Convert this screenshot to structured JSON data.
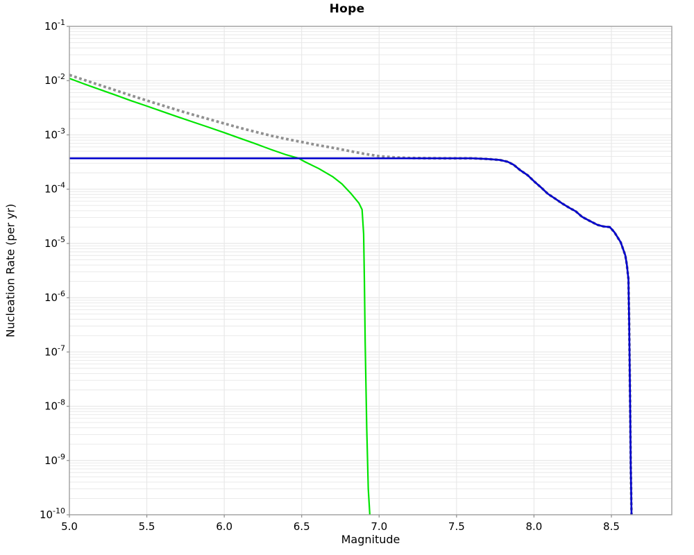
{
  "figure": {
    "title": "Hope"
  },
  "chart_data": {
    "type": "line",
    "title": "Hope",
    "xlabel": "Magnitude",
    "ylabel": "Nucleation Rate (per yr)",
    "x_range": [
      5.0,
      8.89
    ],
    "y_exponent_range": [
      -1,
      -10
    ],
    "x_tick_values": [
      5.0,
      5.5,
      6.0,
      6.5,
      7.0,
      7.5,
      8.0,
      8.5
    ],
    "x_tick_labels": [
      "5.0",
      "5.5",
      "6.0",
      "6.5",
      "7.0",
      "7.5",
      "8.0",
      "8.5"
    ],
    "y_tick_exponents": [
      -1,
      -2,
      -3,
      -4,
      -5,
      -6,
      -7,
      -8,
      -9,
      -10
    ],
    "grid": {
      "show": true,
      "color": "#e7e7e7",
      "vertical_at_major_x": true,
      "log_minor_horizontal": true
    },
    "legend": "none",
    "axis_color": "#a0a0a0",
    "tick_color": "#8c8c8c",
    "background_color": "#ffffff",
    "series": [
      {
        "name": "background-rate-green",
        "color": "#00e400",
        "line_style": "solid",
        "line_width": 2.2,
        "points": [
          [
            5.0,
            0.011
          ],
          [
            5.1,
            0.0086
          ],
          [
            5.2,
            0.0068
          ],
          [
            5.3,
            0.0054
          ],
          [
            5.4,
            0.00425
          ],
          [
            5.5,
            0.0034
          ],
          [
            5.6,
            0.0027
          ],
          [
            5.7,
            0.00215
          ],
          [
            5.8,
            0.00172
          ],
          [
            5.9,
            0.00138
          ],
          [
            6.0,
            0.0011
          ],
          [
            6.1,
            0.00087
          ],
          [
            6.2,
            0.00069
          ],
          [
            6.3,
            0.00054
          ],
          [
            6.4,
            0.00043
          ],
          [
            6.48,
            0.00037
          ],
          [
            6.52,
            0.00032
          ],
          [
            6.61,
            0.00024
          ],
          [
            6.7,
            0.00017
          ],
          [
            6.76,
            0.000125
          ],
          [
            6.82,
            8.2e-05
          ],
          [
            6.87,
            5.5e-05
          ],
          [
            6.89,
            4.2e-05
          ],
          [
            6.9,
            1.5e-05
          ],
          [
            6.905,
            2e-06
          ],
          [
            6.91,
            1.5e-07
          ],
          [
            6.92,
            4e-09
          ],
          [
            6.93,
            3e-10
          ],
          [
            6.94,
            1e-10
          ]
        ]
      },
      {
        "name": "total-rate-dotted-gray",
        "color": "#909090",
        "line_style": "dotted",
        "line_width": 3.8,
        "points": [
          [
            5.0,
            0.0127
          ],
          [
            5.1,
            0.0102
          ],
          [
            5.2,
            0.0082
          ],
          [
            5.3,
            0.0066
          ],
          [
            5.4,
            0.0053
          ],
          [
            5.5,
            0.0043
          ],
          [
            5.6,
            0.0035
          ],
          [
            5.7,
            0.00285
          ],
          [
            5.8,
            0.00235
          ],
          [
            5.9,
            0.00195
          ],
          [
            6.0,
            0.00162
          ],
          [
            6.1,
            0.00135
          ],
          [
            6.2,
            0.00114
          ],
          [
            6.3,
            0.00097
          ],
          [
            6.4,
            0.00084
          ],
          [
            6.5,
            0.00074
          ],
          [
            6.6,
            0.00065
          ],
          [
            6.7,
            0.00058
          ],
          [
            6.8,
            0.00051
          ],
          [
            6.9,
            0.00045
          ],
          [
            7.0,
            0.000405
          ],
          [
            7.1,
            0.000385
          ],
          [
            7.2,
            0.000375
          ],
          [
            7.3,
            0.000372
          ],
          [
            7.4,
            0.00037
          ],
          [
            7.5,
            0.00037
          ],
          [
            7.6,
            0.00037
          ],
          [
            7.7,
            0.00036
          ],
          [
            7.78,
            0.000345
          ],
          [
            7.83,
            0.00032
          ],
          [
            7.87,
            0.00028
          ],
          [
            7.91,
            0.000225
          ],
          [
            7.96,
            0.00018
          ],
          [
            8.0,
            0.00014
          ],
          [
            8.05,
            0.000105
          ],
          [
            8.09,
            8.2e-05
          ],
          [
            8.14,
            6.6e-05
          ],
          [
            8.18,
            5.5e-05
          ],
          [
            8.23,
            4.5e-05
          ],
          [
            8.27,
            3.9e-05
          ],
          [
            8.31,
            3.1e-05
          ],
          [
            8.36,
            2.6e-05
          ],
          [
            8.41,
            2.2e-05
          ],
          [
            8.45,
            2.05e-05
          ],
          [
            8.49,
            2e-05
          ],
          [
            8.52,
            1.6e-05
          ],
          [
            8.56,
            1.05e-05
          ],
          [
            8.59,
            6e-06
          ],
          [
            8.6,
            4e-06
          ],
          [
            8.61,
            2.2e-06
          ],
          [
            8.615,
            3e-07
          ],
          [
            8.62,
            2e-08
          ],
          [
            8.625,
            8e-10
          ],
          [
            8.63,
            1e-10
          ]
        ]
      },
      {
        "name": "characteristic-rate-blue",
        "color": "#0000cc",
        "line_style": "solid",
        "line_width": 2.6,
        "points": [
          [
            5.0,
            0.00037
          ],
          [
            6.0,
            0.00037
          ],
          [
            7.0,
            0.00037
          ],
          [
            7.4,
            0.00037
          ],
          [
            7.5,
            0.00037
          ],
          [
            7.6,
            0.00037
          ],
          [
            7.7,
            0.00036
          ],
          [
            7.78,
            0.000345
          ],
          [
            7.83,
            0.00032
          ],
          [
            7.87,
            0.00028
          ],
          [
            7.91,
            0.000225
          ],
          [
            7.96,
            0.00018
          ],
          [
            8.0,
            0.00014
          ],
          [
            8.05,
            0.000105
          ],
          [
            8.09,
            8.2e-05
          ],
          [
            8.14,
            6.6e-05
          ],
          [
            8.18,
            5.5e-05
          ],
          [
            8.23,
            4.5e-05
          ],
          [
            8.27,
            3.9e-05
          ],
          [
            8.31,
            3.1e-05
          ],
          [
            8.36,
            2.6e-05
          ],
          [
            8.41,
            2.2e-05
          ],
          [
            8.45,
            2.05e-05
          ],
          [
            8.49,
            2e-05
          ],
          [
            8.52,
            1.6e-05
          ],
          [
            8.56,
            1.05e-05
          ],
          [
            8.59,
            6e-06
          ],
          [
            8.6,
            4e-06
          ],
          [
            8.61,
            2.2e-06
          ],
          [
            8.615,
            3e-07
          ],
          [
            8.62,
            2e-08
          ],
          [
            8.625,
            8e-10
          ],
          [
            8.63,
            1e-10
          ]
        ]
      }
    ]
  }
}
